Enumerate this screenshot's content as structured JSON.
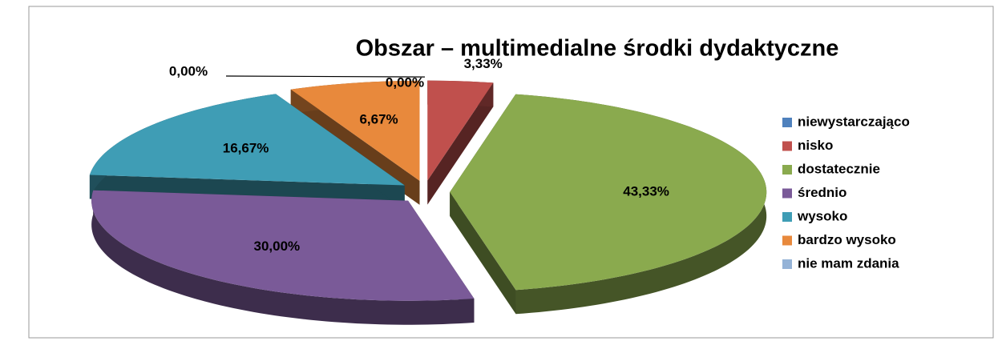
{
  "chart_data": {
    "type": "pie",
    "title": "Obszar – multimedialne środki dydaktyczne",
    "categories": [
      "niewystarczająco",
      "nisko",
      "dostatecznie",
      "średnio",
      "wysoko",
      "bardzo wysoko",
      "nie mam zdania"
    ],
    "values": [
      0,
      3.33,
      43.33,
      30,
      16.67,
      6.67,
      0
    ],
    "value_labels": [
      "0,00%",
      "3,33%",
      "43,33%",
      "30,00%",
      "16,67%",
      "6,67%",
      "0,00%"
    ],
    "colors": [
      "#4f81bd",
      "#c0504d",
      "#8aaa4e",
      "#7a5a98",
      "#3f9db5",
      "#e8893c",
      "#95b3d7"
    ],
    "legend": "right"
  }
}
